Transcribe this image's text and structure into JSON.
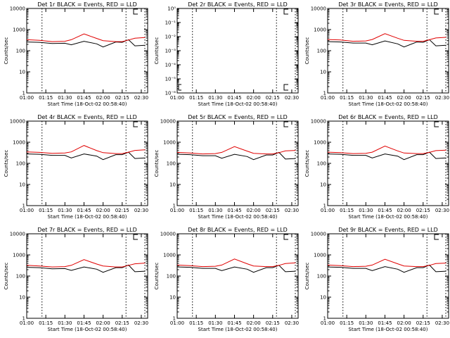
{
  "colors": {
    "events": "#000000",
    "lld": "#e00000",
    "axis": "#000000",
    "dotted": "#000000"
  },
  "shared": {
    "xlabel": "Start Time (18-Oct-02 00:58:40)",
    "ylabel": "Counts/sec",
    "x_ticks": [
      "01:00",
      "01:15",
      "01:30",
      "01:45",
      "02:00",
      "02:15",
      "02:30"
    ],
    "y_ticks_log": [
      "1",
      "10",
      "100",
      "1000",
      "10000"
    ],
    "y_ticks_small": [
      "10⁻⁶",
      "10⁻⁵",
      "10⁻⁴",
      "10⁻³",
      "10⁻²",
      "10⁻¹",
      "10⁰"
    ]
  },
  "chart_data": [
    {
      "type": "line",
      "title": "Det 1r BLACK = Events, RED = LLD",
      "yscale": "log",
      "ylim": [
        1,
        10000
      ],
      "has_data": true,
      "x": [
        "01:00",
        "01:10",
        "01:20",
        "01:30",
        "01:35",
        "01:45",
        "01:55",
        "02:00",
        "02:10",
        "02:15",
        "02:20",
        "02:25",
        "02:33"
      ],
      "series": [
        {
          "name": "Events",
          "values": [
            260,
            250,
            220,
            225,
            190,
            280,
            210,
            150,
            260,
            250,
            330,
            170,
            180
          ]
        },
        {
          "name": "LLD",
          "values": [
            330,
            310,
            270,
            280,
            330,
            620,
            380,
            300,
            270,
            270,
            320,
            390,
            420
          ]
        }
      ]
    },
    {
      "type": "line",
      "title": "Det 2r BLACK = Events, RED = LLD",
      "yscale": "log",
      "ylim": [
        1e-06,
        1
      ],
      "has_data": false,
      "series": []
    },
    {
      "type": "line",
      "title": "Det 3r BLACK = Events, RED = LLD",
      "yscale": "log",
      "ylim": [
        1,
        10000
      ],
      "has_data": true,
      "x": [
        "01:00",
        "01:10",
        "01:20",
        "01:30",
        "01:35",
        "01:45",
        "01:55",
        "02:00",
        "02:10",
        "02:15",
        "02:20",
        "02:25",
        "02:33"
      ],
      "series": [
        {
          "name": "Events",
          "values": [
            270,
            260,
            230,
            230,
            190,
            290,
            210,
            150,
            260,
            250,
            330,
            170,
            180
          ]
        },
        {
          "name": "LLD",
          "values": [
            340,
            320,
            280,
            290,
            340,
            640,
            390,
            310,
            280,
            280,
            330,
            400,
            430
          ]
        }
      ]
    },
    {
      "type": "line",
      "title": "Det 4r BLACK = Events, RED = LLD",
      "yscale": "log",
      "ylim": [
        1,
        10000
      ],
      "has_data": true,
      "x": [
        "01:00",
        "01:10",
        "01:20",
        "01:30",
        "01:35",
        "01:45",
        "01:55",
        "02:00",
        "02:10",
        "02:15",
        "02:20",
        "02:25",
        "02:33"
      ],
      "series": [
        {
          "name": "Events",
          "values": [
            280,
            270,
            240,
            240,
            180,
            280,
            220,
            150,
            260,
            260,
            340,
            170,
            180
          ]
        },
        {
          "name": "LLD",
          "values": [
            350,
            330,
            300,
            310,
            350,
            700,
            400,
            320,
            290,
            290,
            340,
            410,
            440
          ]
        }
      ]
    },
    {
      "type": "line",
      "title": "Det 5r BLACK = Events, RED = LLD",
      "yscale": "log",
      "ylim": [
        1,
        10000
      ],
      "has_data": true,
      "x": [
        "01:00",
        "01:10",
        "01:20",
        "01:30",
        "01:35",
        "01:45",
        "01:55",
        "02:00",
        "02:10",
        "02:15",
        "02:20",
        "02:25",
        "02:33"
      ],
      "series": [
        {
          "name": "Events",
          "values": [
            270,
            260,
            230,
            230,
            175,
            270,
            210,
            150,
            250,
            250,
            330,
            160,
            170
          ]
        },
        {
          "name": "LLD",
          "values": [
            330,
            310,
            280,
            290,
            330,
            620,
            380,
            300,
            280,
            280,
            320,
            390,
            410
          ]
        }
      ]
    },
    {
      "type": "line",
      "title": "Det 6r BLACK = Events, RED = LLD",
      "yscale": "log",
      "ylim": [
        1,
        10000
      ],
      "has_data": true,
      "x": [
        "01:00",
        "01:10",
        "01:20",
        "01:30",
        "01:35",
        "01:45",
        "01:55",
        "02:00",
        "02:10",
        "02:15",
        "02:20",
        "02:25",
        "02:33"
      ],
      "series": [
        {
          "name": "Events",
          "values": [
            280,
            270,
            240,
            240,
            180,
            280,
            220,
            150,
            260,
            260,
            340,
            170,
            180
          ]
        },
        {
          "name": "LLD",
          "values": [
            340,
            320,
            290,
            300,
            340,
            660,
            390,
            310,
            290,
            290,
            330,
            400,
            420
          ]
        }
      ]
    },
    {
      "type": "line",
      "title": "Det 7r BLACK = Events, RED = LLD",
      "yscale": "log",
      "ylim": [
        1,
        10000
      ],
      "has_data": true,
      "x": [
        "01:00",
        "01:10",
        "01:20",
        "01:30",
        "01:35",
        "01:45",
        "01:55",
        "02:00",
        "02:10",
        "02:15",
        "02:20",
        "02:25",
        "02:33"
      ],
      "series": [
        {
          "name": "Events",
          "values": [
            260,
            250,
            220,
            225,
            185,
            270,
            210,
            150,
            250,
            250,
            330,
            160,
            170
          ]
        },
        {
          "name": "LLD",
          "values": [
            320,
            300,
            270,
            280,
            320,
            600,
            370,
            300,
            270,
            270,
            320,
            380,
            410
          ]
        }
      ]
    },
    {
      "type": "line",
      "title": "Det 8r BLACK = Events, RED = LLD",
      "yscale": "log",
      "ylim": [
        1,
        10000
      ],
      "has_data": true,
      "x": [
        "01:00",
        "01:10",
        "01:20",
        "01:30",
        "01:35",
        "01:45",
        "01:55",
        "02:00",
        "02:10",
        "02:15",
        "02:20",
        "02:25",
        "02:33"
      ],
      "series": [
        {
          "name": "Events",
          "values": [
            270,
            260,
            230,
            230,
            180,
            270,
            210,
            150,
            250,
            250,
            320,
            160,
            170
          ]
        },
        {
          "name": "LLD",
          "values": [
            330,
            310,
            280,
            290,
            330,
            640,
            380,
            300,
            280,
            280,
            320,
            390,
            420
          ]
        }
      ]
    },
    {
      "type": "line",
      "title": "Det 9r BLACK = Events, RED = LLD",
      "yscale": "log",
      "ylim": [
        1,
        10000
      ],
      "has_data": true,
      "x": [
        "01:00",
        "01:10",
        "01:20",
        "01:30",
        "01:35",
        "01:45",
        "01:55",
        "02:00",
        "02:10",
        "02:15",
        "02:20",
        "02:25",
        "02:33"
      ],
      "series": [
        {
          "name": "Events",
          "values": [
            270,
            260,
            230,
            230,
            180,
            280,
            210,
            150,
            250,
            250,
            330,
            160,
            170
          ]
        },
        {
          "name": "LLD",
          "values": [
            330,
            310,
            280,
            290,
            330,
            620,
            380,
            300,
            280,
            280,
            320,
            390,
            410
          ]
        }
      ]
    }
  ]
}
